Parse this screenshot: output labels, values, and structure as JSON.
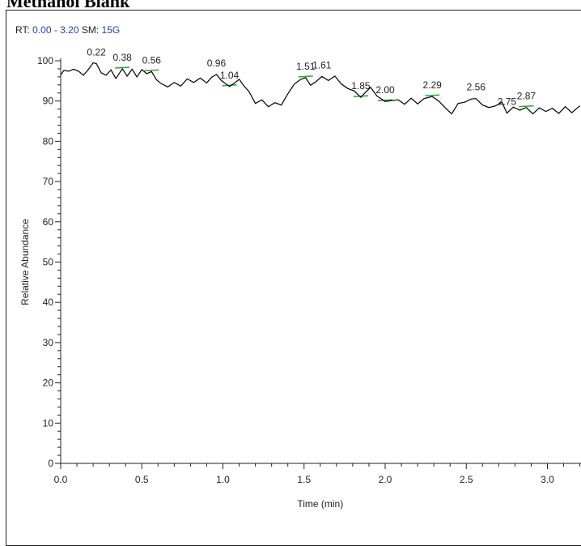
{
  "page": {
    "heading": "Methanol Blank"
  },
  "header": {
    "rt_label": "RT:",
    "rt_range": "0.00 - 3.20",
    "sm_label": "SM:",
    "sm_value": "15G"
  },
  "chart_data": {
    "type": "line",
    "title": "",
    "xlabel": "Time (min)",
    "ylabel": "Relative Abundance",
    "xlim": [
      0.0,
      3.2
    ],
    "ylim": [
      0,
      100
    ],
    "x_ticks": [
      "0.0",
      "0.5",
      "1.0",
      "1.5",
      "2.0",
      "2.5",
      "3.0"
    ],
    "y_ticks": [
      "0",
      "10",
      "20",
      "30",
      "40",
      "50",
      "60",
      "70",
      "80",
      "90",
      "100"
    ],
    "grid": false,
    "line_color": "#000000",
    "marker_color": "#22aa22",
    "series": [
      {
        "x": [
          0.0,
          0.02,
          0.05,
          0.08,
          0.11,
          0.14,
          0.17,
          0.2,
          0.22,
          0.25,
          0.28,
          0.31,
          0.34,
          0.36,
          0.38,
          0.41,
          0.44,
          0.47,
          0.5,
          0.53,
          0.56,
          0.59,
          0.62,
          0.66,
          0.7,
          0.74,
          0.78,
          0.82,
          0.86,
          0.9,
          0.93,
          0.96,
          0.99,
          1.02,
          1.04,
          1.07,
          1.1,
          1.13,
          1.16,
          1.2,
          1.24,
          1.28,
          1.32,
          1.36,
          1.4,
          1.44,
          1.48,
          1.51,
          1.54,
          1.57,
          1.61,
          1.65,
          1.69,
          1.73,
          1.77,
          1.81,
          1.85,
          1.88,
          1.91,
          1.95,
          2.0,
          2.04,
          2.08,
          2.12,
          2.16,
          2.2,
          2.24,
          2.29,
          2.33,
          2.37,
          2.41,
          2.45,
          2.49,
          2.53,
          2.56,
          2.6,
          2.64,
          2.68,
          2.72,
          2.75,
          2.79,
          2.83,
          2.87,
          2.91,
          2.95,
          2.99,
          3.03,
          3.07,
          3.11,
          3.15,
          3.2
        ],
        "y": [
          96.5,
          97.6,
          97.4,
          97.9,
          97.4,
          96.4,
          97.8,
          99.5,
          99.3,
          97.0,
          96.4,
          97.7,
          95.6,
          96.8,
          98.0,
          96.2,
          97.9,
          96.0,
          97.8,
          96.8,
          97.3,
          95.3,
          94.3,
          93.5,
          94.6,
          93.7,
          95.5,
          94.6,
          95.7,
          94.5,
          95.9,
          96.6,
          95.1,
          94.2,
          93.6,
          94.4,
          95.4,
          93.7,
          92.4,
          89.4,
          90.3,
          88.6,
          89.6,
          89.0,
          91.8,
          94.2,
          95.4,
          95.8,
          93.9,
          94.7,
          96.1,
          95.1,
          96.2,
          94.2,
          93.1,
          92.5,
          90.9,
          92.2,
          93.4,
          91.2,
          89.9,
          90.1,
          90.3,
          89.2,
          90.7,
          89.3,
          90.6,
          91.1,
          90.0,
          88.3,
          86.8,
          89.4,
          89.7,
          90.5,
          90.6,
          89.0,
          88.4,
          88.8,
          89.7,
          87.0,
          88.5,
          87.7,
          88.4,
          86.8,
          88.3,
          87.4,
          88.2,
          86.9,
          88.6,
          87.1,
          88.8
        ]
      }
    ],
    "peak_labels": [
      {
        "x": 0.22,
        "label": "0.22"
      },
      {
        "x": 0.38,
        "label": "0.38"
      },
      {
        "x": 0.56,
        "label": "0.56"
      },
      {
        "x": 0.96,
        "label": "0.96"
      },
      {
        "x": 1.04,
        "label": "1.04"
      },
      {
        "x": 1.51,
        "label": "1.51"
      },
      {
        "x": 1.61,
        "label": "1.61"
      },
      {
        "x": 1.85,
        "label": "1.85"
      },
      {
        "x": 2.0,
        "label": "2.00"
      },
      {
        "x": 2.29,
        "label": "2.29"
      },
      {
        "x": 2.56,
        "label": "2.56"
      },
      {
        "x": 2.75,
        "label": "2.75"
      },
      {
        "x": 2.87,
        "label": "2.87"
      }
    ],
    "peak_markers": [
      0.38,
      0.56,
      1.04,
      1.51,
      1.85,
      2.0,
      2.29,
      2.87
    ]
  }
}
